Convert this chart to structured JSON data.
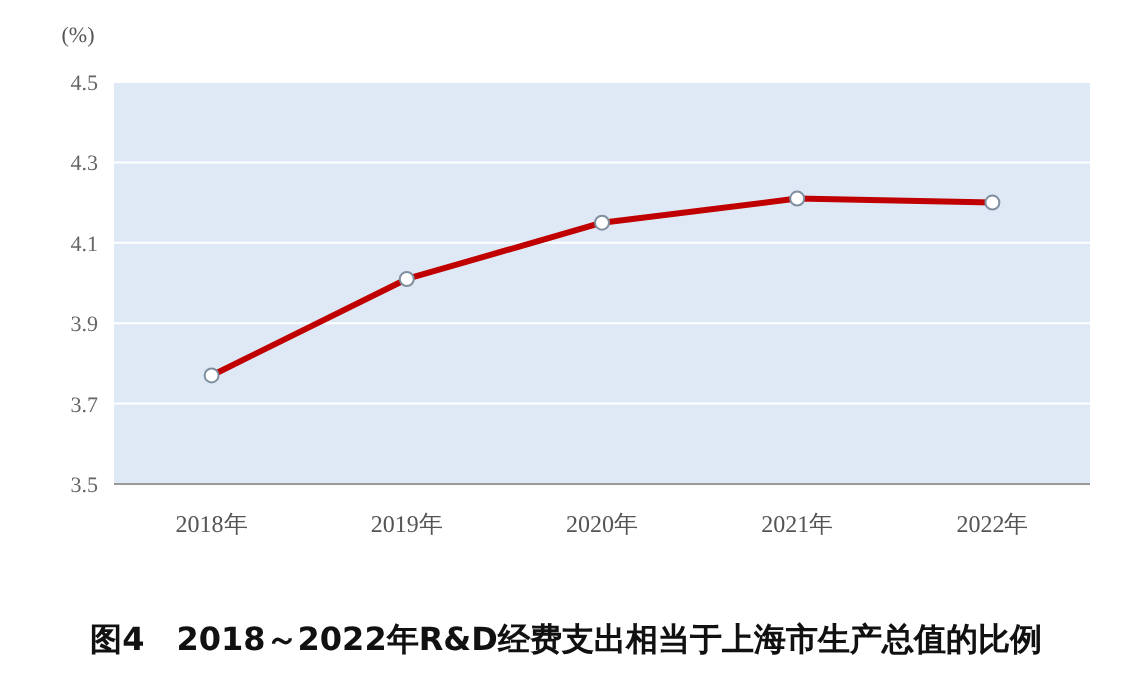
{
  "chart_data": {
    "type": "line",
    "title": "图4　2018～2022年R&D经费支出相当于上海市生产总值的比例",
    "ylabel": "(%)",
    "categories": [
      "2018年",
      "2019年",
      "2020年",
      "2021年",
      "2022年"
    ],
    "values": [
      3.77,
      4.01,
      4.15,
      4.21,
      4.2
    ],
    "color": "#c00000",
    "marker": "circle",
    "line_style": "solid",
    "ylim": [
      3.5,
      4.5
    ],
    "yticks": [
      3.5,
      3.7,
      3.9,
      4.1,
      4.3,
      4.5
    ],
    "grid": "y"
  }
}
